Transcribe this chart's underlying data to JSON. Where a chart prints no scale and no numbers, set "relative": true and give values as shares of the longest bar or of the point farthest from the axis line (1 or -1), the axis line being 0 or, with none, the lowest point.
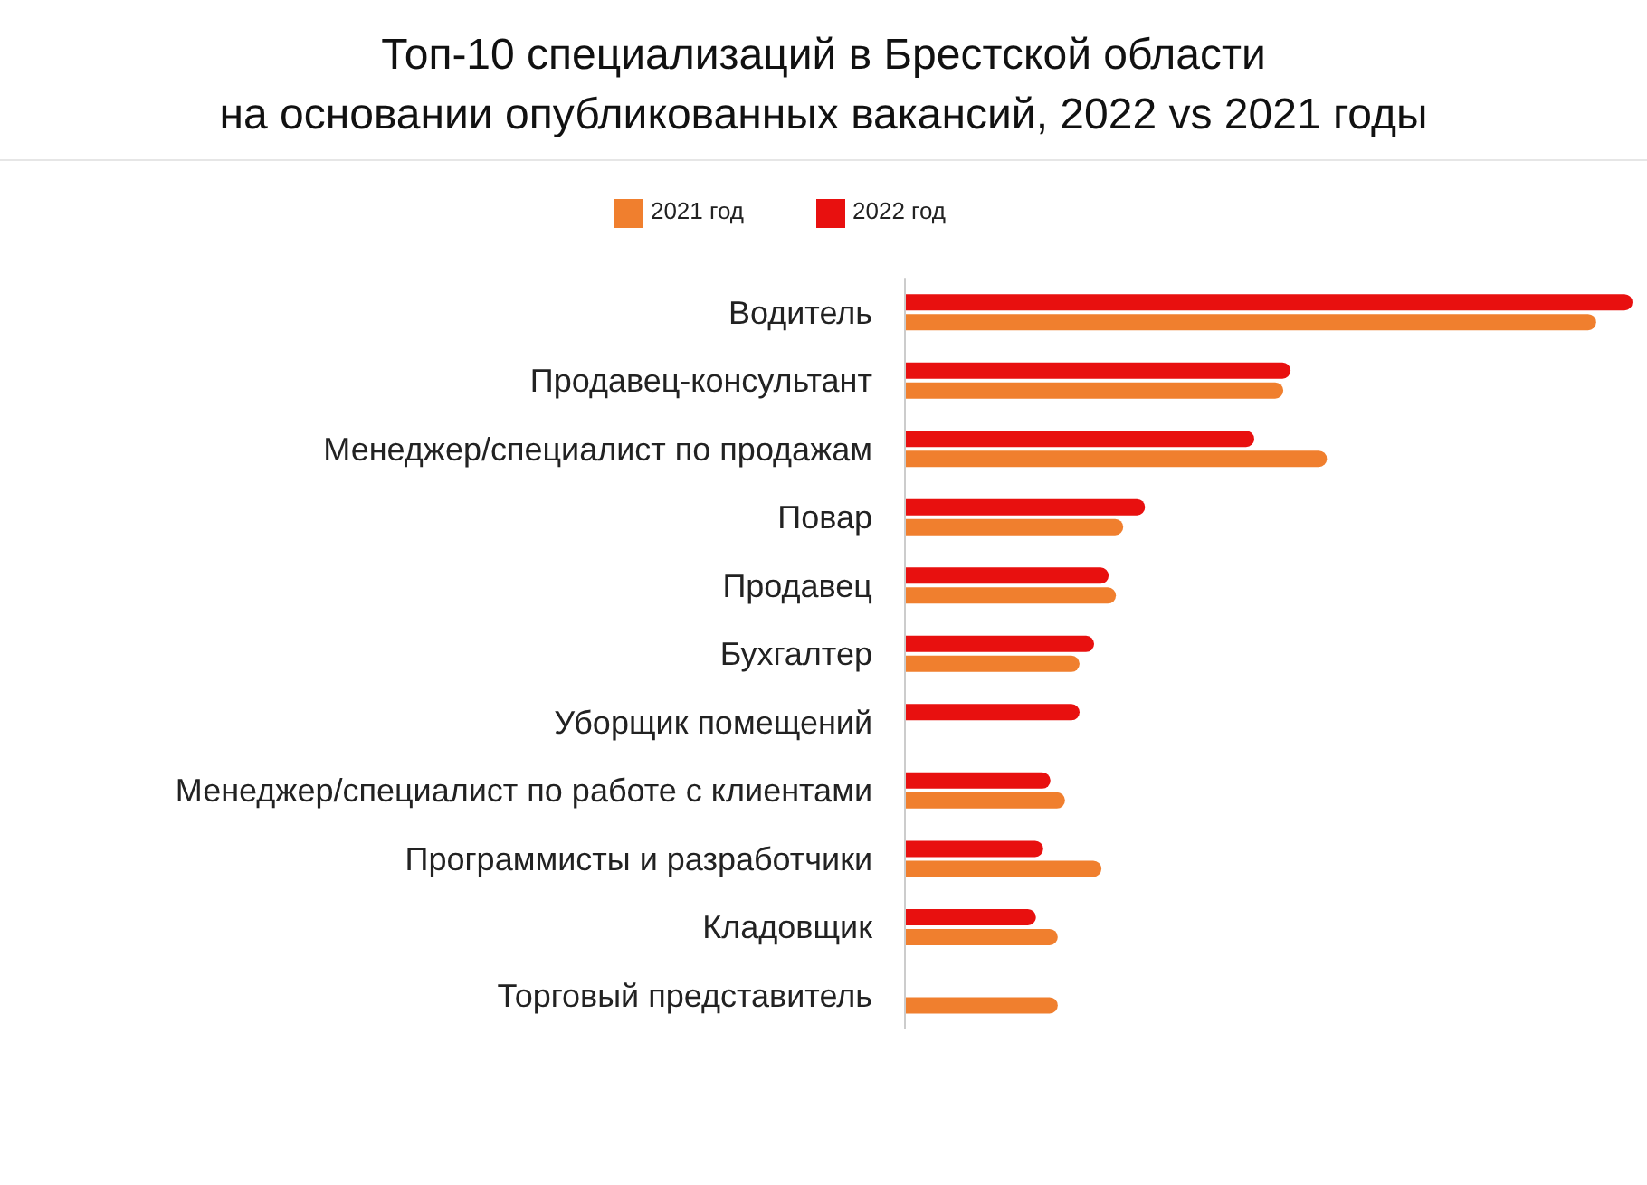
{
  "chart_data": {
    "type": "bar",
    "orientation": "horizontal",
    "relative": true,
    "title": "Топ-10 специализаций в Брестской области\nна основании опубликованных вакансий, 2022 vs 2021 годы",
    "categories": [
      "Водитель",
      "Продавец-консультант",
      "Менеджер/специалист по продажам",
      "Повар",
      "Продавец",
      "Бухгалтер",
      "Уборщик помещений",
      "Менеджер/специалист по работе с клиентами",
      "Программисты и разработчики",
      "Кладовщик",
      "Торговый представитель"
    ],
    "series": [
      {
        "name": "2022 год",
        "color": "#e8100f",
        "values": [
          1,
          0.53,
          0.48,
          0.33,
          0.28,
          0.26,
          0.24,
          0.2,
          0.19,
          0.18,
          null
        ]
      },
      {
        "name": "2021 год",
        "color": "#f07f2e",
        "values": [
          0.95,
          0.52,
          0.58,
          0.3,
          0.29,
          0.24,
          null,
          0.22,
          0.27,
          0.21,
          0.21
        ]
      }
    ],
    "legend": "top",
    "grid": false
  }
}
